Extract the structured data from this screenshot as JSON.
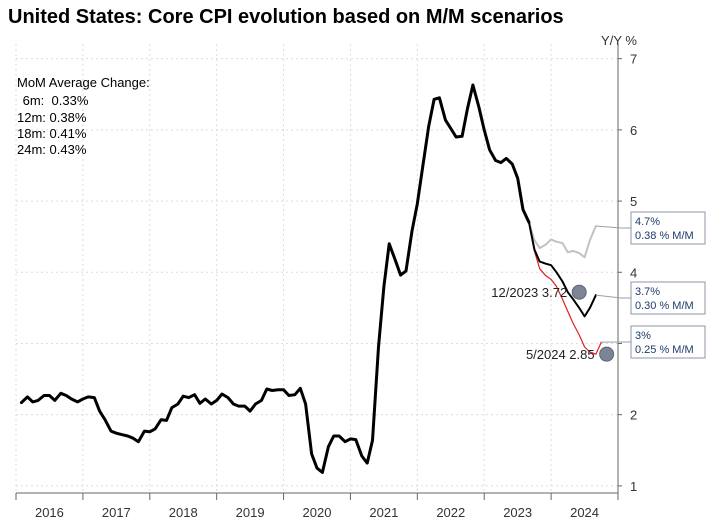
{
  "chart_data": {
    "type": "line",
    "title": "United States: Core CPI evolution based on M/M scenarios",
    "ylabel": "Y/Y %",
    "ylim": [
      0.8,
      7.2
    ],
    "yticks": [
      1,
      2,
      3,
      4,
      5,
      6,
      7
    ],
    "xlim": [
      2015.5,
      2024.6
    ],
    "year_labels": [
      "2016",
      "2017",
      "2018",
      "2019",
      "2020",
      "2021",
      "2022",
      "2023",
      "2024"
    ],
    "grid": true,
    "info_box": {
      "heading": "MoM Average Change:",
      "lines": [
        {
          "label": " 6m:",
          "value": "0.33%"
        },
        {
          "label": "12m:",
          "value": "0.38%"
        },
        {
          "label": "18m:",
          "value": "0.41%"
        },
        {
          "label": "24m:",
          "value": "0.43%"
        }
      ]
    },
    "series": [
      {
        "key": "actual",
        "color": "#000000",
        "points": [
          [
            2015.58,
            2.17
          ],
          [
            2015.67,
            2.25
          ],
          [
            2015.75,
            2.18
          ],
          [
            2015.83,
            2.2
          ],
          [
            2015.92,
            2.27
          ],
          [
            2016.0,
            2.27
          ],
          [
            2016.08,
            2.2
          ],
          [
            2016.17,
            2.3
          ],
          [
            2016.25,
            2.27
          ],
          [
            2016.33,
            2.22
          ],
          [
            2016.42,
            2.18
          ],
          [
            2016.5,
            2.22
          ],
          [
            2016.58,
            2.25
          ],
          [
            2016.67,
            2.24
          ],
          [
            2016.75,
            2.05
          ],
          [
            2016.83,
            1.93
          ],
          [
            2016.92,
            1.77
          ],
          [
            2017.0,
            1.74
          ],
          [
            2017.08,
            1.72
          ],
          [
            2017.17,
            1.7
          ],
          [
            2017.25,
            1.67
          ],
          [
            2017.33,
            1.62
          ],
          [
            2017.42,
            1.77
          ],
          [
            2017.5,
            1.76
          ],
          [
            2017.58,
            1.8
          ],
          [
            2017.67,
            1.93
          ],
          [
            2017.75,
            1.92
          ],
          [
            2017.83,
            2.1
          ],
          [
            2017.92,
            2.15
          ],
          [
            2018.0,
            2.26
          ],
          [
            2018.08,
            2.24
          ],
          [
            2018.17,
            2.28
          ],
          [
            2018.25,
            2.16
          ],
          [
            2018.33,
            2.22
          ],
          [
            2018.42,
            2.15
          ],
          [
            2018.5,
            2.2
          ],
          [
            2018.58,
            2.29
          ],
          [
            2018.67,
            2.24
          ],
          [
            2018.75,
            2.15
          ],
          [
            2018.83,
            2.12
          ],
          [
            2018.92,
            2.12
          ],
          [
            2019.0,
            2.05
          ],
          [
            2019.08,
            2.15
          ],
          [
            2019.17,
            2.2
          ],
          [
            2019.25,
            2.36
          ],
          [
            2019.33,
            2.34
          ],
          [
            2019.42,
            2.35
          ],
          [
            2019.5,
            2.35
          ],
          [
            2019.58,
            2.27
          ],
          [
            2019.67,
            2.28
          ],
          [
            2019.75,
            2.37
          ],
          [
            2019.83,
            2.15
          ],
          [
            2019.92,
            1.45
          ],
          [
            2020.0,
            1.25
          ],
          [
            2020.08,
            1.19
          ],
          [
            2020.17,
            1.55
          ],
          [
            2020.25,
            1.7
          ],
          [
            2020.33,
            1.7
          ],
          [
            2020.42,
            1.62
          ],
          [
            2020.5,
            1.66
          ],
          [
            2020.58,
            1.65
          ],
          [
            2020.67,
            1.42
          ],
          [
            2020.75,
            1.32
          ],
          [
            2020.83,
            1.64
          ],
          [
            2020.92,
            2.95
          ],
          [
            2021.0,
            3.8
          ],
          [
            2021.08,
            4.4
          ],
          [
            2021.17,
            4.17
          ],
          [
            2021.25,
            3.96
          ],
          [
            2021.33,
            4.02
          ],
          [
            2021.42,
            4.58
          ],
          [
            2021.5,
            4.96
          ],
          [
            2021.58,
            5.48
          ],
          [
            2021.67,
            6.05
          ],
          [
            2021.75,
            6.43
          ],
          [
            2021.83,
            6.45
          ],
          [
            2021.92,
            6.14
          ],
          [
            2022.0,
            6.02
          ],
          [
            2022.08,
            5.9
          ],
          [
            2022.17,
            5.91
          ],
          [
            2022.25,
            6.3
          ],
          [
            2022.33,
            6.63
          ],
          [
            2022.42,
            6.32
          ],
          [
            2022.5,
            6.0
          ],
          [
            2022.58,
            5.72
          ],
          [
            2022.67,
            5.57
          ],
          [
            2022.75,
            5.54
          ],
          [
            2022.83,
            5.6
          ],
          [
            2022.92,
            5.52
          ],
          [
            2023.0,
            5.32
          ],
          [
            2023.08,
            4.88
          ],
          [
            2023.17,
            4.7
          ]
        ]
      },
      {
        "key": "scenario-0.38",
        "color": "#c2c2c2",
        "label": "4.7%",
        "sublabel": "0.38 % M/M",
        "points": [
          [
            2023.17,
            4.7
          ],
          [
            2023.25,
            4.45
          ],
          [
            2023.33,
            4.34
          ],
          [
            2023.42,
            4.39
          ],
          [
            2023.5,
            4.46
          ],
          [
            2023.58,
            4.43
          ],
          [
            2023.67,
            4.41
          ],
          [
            2023.75,
            4.28
          ],
          [
            2023.83,
            4.3
          ],
          [
            2023.92,
            4.27
          ],
          [
            2024.0,
            4.21
          ],
          [
            2024.08,
            4.45
          ],
          [
            2024.17,
            4.65
          ]
        ]
      },
      {
        "key": "scenario-0.30",
        "color": "#000000",
        "label": "3.7%",
        "sublabel": "0.30 % M/M",
        "points": [
          [
            2023.17,
            4.7
          ],
          [
            2023.25,
            4.32
          ],
          [
            2023.33,
            4.15
          ],
          [
            2023.42,
            4.12
          ],
          [
            2023.5,
            4.1
          ],
          [
            2023.58,
            4.0
          ],
          [
            2023.67,
            3.87
          ],
          [
            2023.75,
            3.72
          ],
          [
            2023.83,
            3.62
          ],
          [
            2023.92,
            3.5
          ],
          [
            2024.0,
            3.38
          ],
          [
            2024.08,
            3.5
          ],
          [
            2024.17,
            3.68
          ]
        ]
      },
      {
        "key": "scenario-0.25",
        "color": "#e02020",
        "label": "3%",
        "sublabel": "0.25 % M/M",
        "points": [
          [
            2023.17,
            4.7
          ],
          [
            2023.25,
            4.3
          ],
          [
            2023.33,
            4.05
          ],
          [
            2023.42,
            3.95
          ],
          [
            2023.5,
            3.9
          ],
          [
            2023.58,
            3.8
          ],
          [
            2023.67,
            3.62
          ],
          [
            2023.75,
            3.45
          ],
          [
            2023.83,
            3.28
          ],
          [
            2023.92,
            3.12
          ],
          [
            2024.0,
            2.95
          ],
          [
            2024.08,
            2.88
          ],
          [
            2024.17,
            2.85
          ],
          [
            2024.25,
            3.02
          ]
        ]
      }
    ],
    "markers": [
      {
        "x": 2023.92,
        "y": 3.72,
        "label": "12/2023 3.72"
      },
      {
        "x": 2024.33,
        "y": 2.85,
        "label": "5/2024 2.85"
      }
    ]
  }
}
